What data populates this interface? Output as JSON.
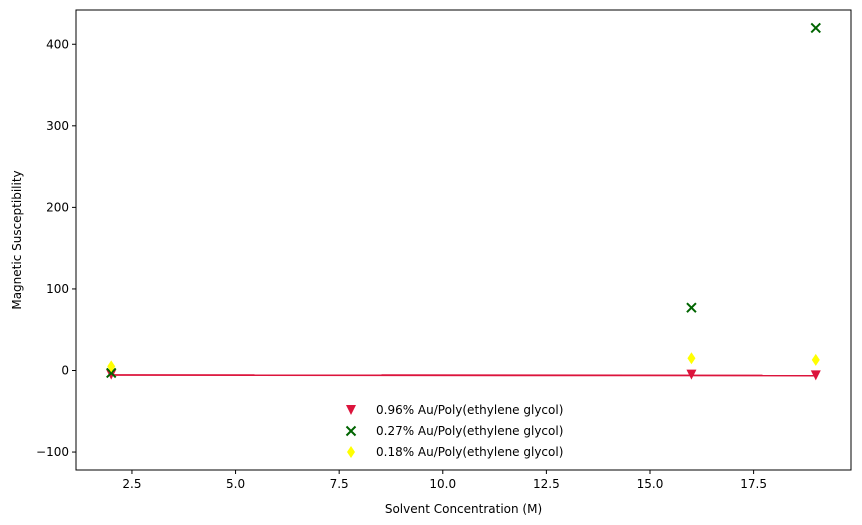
{
  "chart_data": {
    "type": "scatter",
    "title": "",
    "xlabel": "Solvent Concentration (M)",
    "ylabel": "Magnetic Susceptibility",
    "xlim": [
      1.15,
      19.85
    ],
    "ylim": [
      -122,
      442
    ],
    "xticks": [
      2.5,
      5.0,
      7.5,
      10.0,
      12.5,
      15.0,
      17.5
    ],
    "xtick_labels": [
      "2.5",
      "5.0",
      "7.5",
      "10.0",
      "12.5",
      "15.0",
      "17.5"
    ],
    "yticks": [
      -100,
      0,
      100,
      200,
      300,
      400
    ],
    "ytick_labels": [
      "−100",
      "0",
      "100",
      "200",
      "300",
      "400"
    ],
    "grid": false,
    "legend_position": "lower center",
    "series": [
      {
        "name": "0.96% Au/Poly(ethylene glycol)",
        "marker": "triangle-down",
        "color": "#dc143c",
        "x": [
          2,
          16,
          19
        ],
        "y": [
          -5,
          -5,
          -6
        ]
      },
      {
        "name": "0.27% Au/Poly(ethylene glycol)",
        "marker": "x",
        "color": "#006400",
        "x": [
          2,
          16,
          19
        ],
        "y": [
          -3,
          77,
          420
        ]
      },
      {
        "name": "0.18% Au/Poly(ethylene glycol)",
        "marker": "thin-diamond",
        "color": "#ffff00",
        "x": [
          2,
          16,
          19
        ],
        "y": [
          5,
          15,
          13
        ]
      }
    ],
    "fit_line": {
      "color": "#dc143c",
      "x": [
        2,
        19
      ],
      "y": [
        -5.5,
        -6.2
      ]
    }
  }
}
